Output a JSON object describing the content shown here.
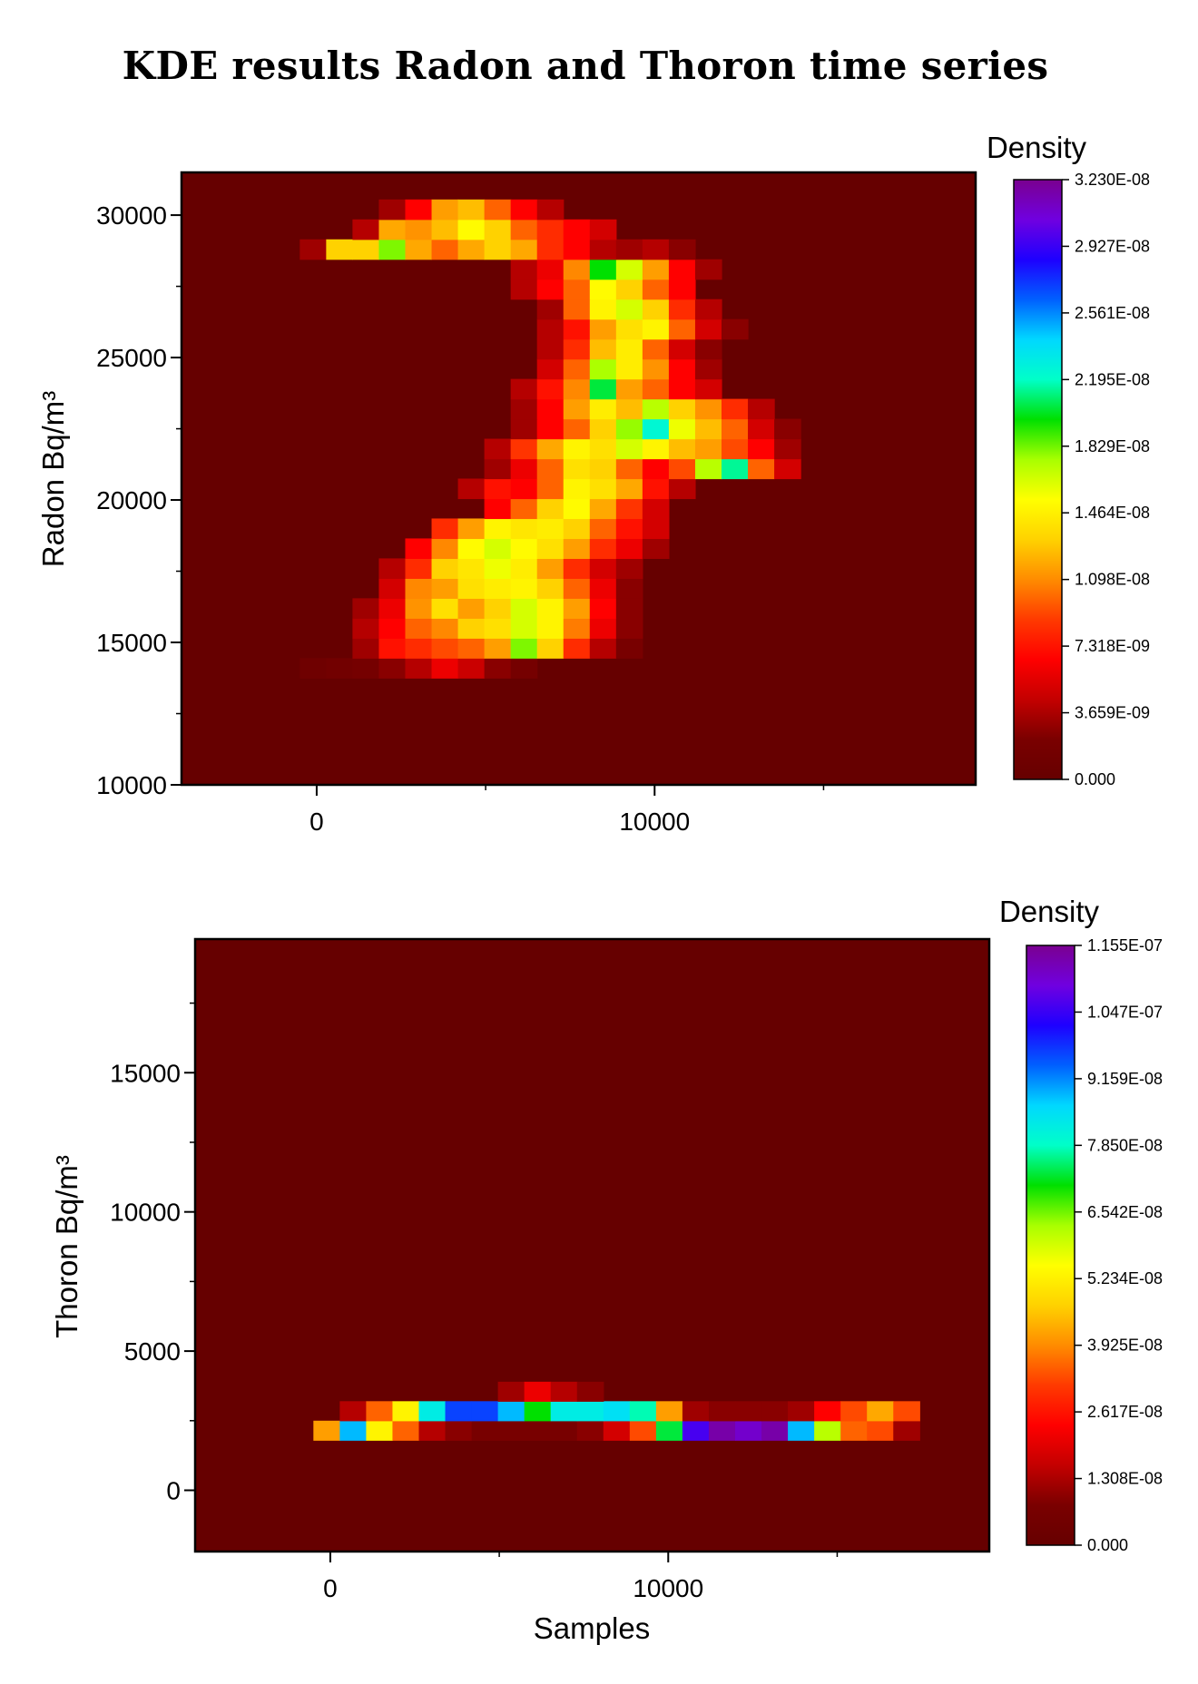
{
  "figure_title": "KDE results Radon and Thoron time series",
  "colormap_stops": [
    "#660000",
    "#7a0000",
    "#c40000",
    "#ff0000",
    "#ff3a00",
    "#ff8c00",
    "#ffd200",
    "#ffff00",
    "#a8ff00",
    "#00e000",
    "#00ffc8",
    "#00d8ff",
    "#0060ff",
    "#1e00ff",
    "#7000e0",
    "#7a0090"
  ],
  "chart_data": [
    {
      "type": "heatmap",
      "title": "",
      "xlabel": "",
      "ylabel": "Radon Bq/m³",
      "x_ticks": [
        "0",
        "10000"
      ],
      "y_ticks": [
        "10000",
        "15000",
        "20000",
        "25000",
        "30000"
      ],
      "xlim": [
        -4000,
        19500
      ],
      "ylim": [
        10000,
        31500
      ],
      "colorbar": {
        "title": "Density",
        "labels": [
          "3.230E-08",
          "2.927E-08",
          "2.561E-08",
          "2.195E-08",
          "1.829E-08",
          "1.464E-08",
          "1.098E-08",
          "7.318E-09",
          "3.659E-09",
          "0.000"
        ],
        "range": [
          0,
          3.23e-08
        ]
      },
      "grid": {
        "x_start": -500,
        "x_step": 780,
        "y_start": 13750,
        "y_step": 700
      },
      "cells": [
        [
          0,
          0,
          0.03
        ],
        [
          0,
          1,
          0.04
        ],
        [
          0,
          2,
          0.05
        ],
        [
          0,
          3,
          0.08
        ],
        [
          0,
          4,
          0.12
        ],
        [
          0,
          5,
          0.18
        ],
        [
          0,
          6,
          0.14
        ],
        [
          0,
          7,
          0.08
        ],
        [
          0,
          8,
          0.05
        ],
        [
          1,
          2,
          0.1
        ],
        [
          1,
          3,
          0.22
        ],
        [
          1,
          4,
          0.25
        ],
        [
          1,
          5,
          0.28
        ],
        [
          1,
          6,
          0.3
        ],
        [
          1,
          7,
          0.35
        ],
        [
          1,
          8,
          0.55
        ],
        [
          1,
          9,
          0.4
        ],
        [
          1,
          10,
          0.25
        ],
        [
          1,
          11,
          0.12
        ],
        [
          1,
          12,
          0.06
        ],
        [
          2,
          2,
          0.12
        ],
        [
          2,
          3,
          0.2
        ],
        [
          2,
          4,
          0.3
        ],
        [
          2,
          5,
          0.33
        ],
        [
          2,
          6,
          0.4
        ],
        [
          2,
          7,
          0.42
        ],
        [
          2,
          8,
          0.5
        ],
        [
          2,
          9,
          0.45
        ],
        [
          2,
          10,
          0.32
        ],
        [
          2,
          11,
          0.18
        ],
        [
          2,
          12,
          0.08
        ],
        [
          3,
          2,
          0.1
        ],
        [
          3,
          3,
          0.18
        ],
        [
          3,
          4,
          0.34
        ],
        [
          3,
          5,
          0.42
        ],
        [
          3,
          6,
          0.35
        ],
        [
          3,
          7,
          0.4
        ],
        [
          3,
          8,
          0.5
        ],
        [
          3,
          9,
          0.45
        ],
        [
          3,
          10,
          0.35
        ],
        [
          3,
          11,
          0.2
        ],
        [
          3,
          12,
          0.08
        ],
        [
          4,
          3,
          0.15
        ],
        [
          4,
          4,
          0.33
        ],
        [
          4,
          5,
          0.35
        ],
        [
          4,
          6,
          0.42
        ],
        [
          4,
          7,
          0.44
        ],
        [
          4,
          8,
          0.45
        ],
        [
          4,
          9,
          0.4
        ],
        [
          4,
          10,
          0.3
        ],
        [
          4,
          11,
          0.18
        ],
        [
          4,
          12,
          0.08
        ],
        [
          5,
          3,
          0.12
        ],
        [
          5,
          4,
          0.25
        ],
        [
          5,
          5,
          0.4
        ],
        [
          5,
          6,
          0.43
        ],
        [
          5,
          7,
          0.48
        ],
        [
          5,
          8,
          0.44
        ],
        [
          5,
          9,
          0.35
        ],
        [
          5,
          10,
          0.25
        ],
        [
          5,
          11,
          0.15
        ],
        [
          5,
          12,
          0.1
        ],
        [
          6,
          4,
          0.2
        ],
        [
          6,
          5,
          0.33
        ],
        [
          6,
          6,
          0.46
        ],
        [
          6,
          7,
          0.5
        ],
        [
          6,
          8,
          0.46
        ],
        [
          6,
          9,
          0.42
        ],
        [
          6,
          10,
          0.35
        ],
        [
          6,
          11,
          0.25
        ],
        [
          6,
          12,
          0.18
        ],
        [
          6,
          13,
          0.1
        ],
        [
          7,
          5,
          0.25
        ],
        [
          7,
          6,
          0.35
        ],
        [
          7,
          7,
          0.45
        ],
        [
          7,
          8,
          0.43
        ],
        [
          7,
          9,
          0.44
        ],
        [
          7,
          10,
          0.4
        ],
        [
          7,
          11,
          0.3
        ],
        [
          7,
          12,
          0.22
        ],
        [
          7,
          13,
          0.15
        ],
        [
          8,
          7,
          0.2
        ],
        [
          8,
          8,
          0.3
        ],
        [
          8,
          9,
          0.4
        ],
        [
          8,
          10,
          0.46
        ],
        [
          8,
          11,
          0.36
        ],
        [
          8,
          12,
          0.26
        ],
        [
          8,
          13,
          0.15
        ],
        [
          9,
          6,
          0.12
        ],
        [
          9,
          7,
          0.22
        ],
        [
          9,
          8,
          0.2
        ],
        [
          9,
          9,
          0.3
        ],
        [
          9,
          10,
          0.45
        ],
        [
          9,
          11,
          0.42
        ],
        [
          9,
          12,
          0.36
        ],
        [
          9,
          13,
          0.22
        ],
        [
          9,
          14,
          0.12
        ],
        [
          10,
          7,
          0.1
        ],
        [
          10,
          8,
          0.18
        ],
        [
          10,
          9,
          0.3
        ],
        [
          10,
          10,
          0.42
        ],
        [
          10,
          11,
          0.4
        ],
        [
          10,
          12,
          0.3
        ],
        [
          10,
          13,
          0.2
        ],
        [
          10,
          14,
          0.28
        ],
        [
          10,
          15,
          0.52
        ],
        [
          10,
          16,
          0.65
        ],
        [
          10,
          17,
          0.3
        ],
        [
          10,
          18,
          0.15
        ],
        [
          11,
          7,
          0.12
        ],
        [
          11,
          8,
          0.26
        ],
        [
          11,
          9,
          0.36
        ],
        [
          11,
          10,
          0.45
        ],
        [
          11,
          11,
          0.42
        ],
        [
          11,
          12,
          0.5
        ],
        [
          11,
          13,
          0.45
        ],
        [
          11,
          14,
          0.38
        ],
        [
          11,
          15,
          0.35
        ],
        [
          11,
          16,
          0.28
        ],
        [
          11,
          17,
          0.2
        ],
        [
          11,
          18,
          0.1
        ],
        [
          12,
          8,
          0.1
        ],
        [
          12,
          9,
          0.2
        ],
        [
          12,
          10,
          0.3
        ],
        [
          12,
          11,
          0.4
        ],
        [
          12,
          12,
          0.54
        ],
        [
          12,
          13,
          0.68
        ],
        [
          12,
          14,
          0.48
        ],
        [
          12,
          15,
          0.38
        ],
        [
          12,
          16,
          0.3
        ],
        [
          12,
          17,
          0.15
        ],
        [
          12,
          18,
          0.08
        ],
        [
          13,
          8,
          0.1
        ],
        [
          13,
          9,
          0.2
        ],
        [
          13,
          10,
          0.35
        ],
        [
          13,
          11,
          0.44
        ],
        [
          13,
          12,
          0.38
        ],
        [
          13,
          13,
          0.52
        ],
        [
          13,
          14,
          0.4
        ],
        [
          13,
          15,
          0.34
        ],
        [
          13,
          16,
          0.25
        ],
        [
          13,
          17,
          0.12
        ],
        [
          14,
          8,
          0.12
        ],
        [
          14,
          9,
          0.22
        ],
        [
          14,
          10,
          0.33
        ],
        [
          14,
          11,
          0.62
        ],
        [
          14,
          12,
          0.35
        ],
        [
          14,
          13,
          0.3
        ],
        [
          14,
          14,
          0.2
        ],
        [
          14,
          15,
          0.15
        ],
        [
          15,
          9,
          0.15
        ],
        [
          15,
          10,
          0.3
        ],
        [
          15,
          11,
          0.53
        ],
        [
          15,
          12,
          0.44
        ],
        [
          15,
          13,
          0.34
        ],
        [
          15,
          14,
          0.2
        ],
        [
          15,
          15,
          0.1
        ],
        [
          16,
          9,
          0.12
        ],
        [
          16,
          10,
          0.25
        ],
        [
          16,
          11,
          0.38
        ],
        [
          16,
          12,
          0.44
        ],
        [
          16,
          13,
          0.3
        ],
        [
          16,
          14,
          0.15
        ],
        [
          16,
          15,
          0.08
        ],
        [
          17,
          9,
          0.12
        ],
        [
          17,
          10,
          0.22
        ],
        [
          17,
          11,
          0.35
        ],
        [
          17,
          12,
          0.42
        ],
        [
          17,
          13,
          0.45
        ],
        [
          17,
          14,
          0.3
        ],
        [
          17,
          15,
          0.15
        ],
        [
          17,
          16,
          0.08
        ],
        [
          18,
          9,
          0.1
        ],
        [
          18,
          10,
          0.3
        ],
        [
          18,
          11,
          0.45
        ],
        [
          18,
          12,
          0.5
        ],
        [
          18,
          13,
          0.4
        ],
        [
          18,
          14,
          0.25
        ],
        [
          18,
          15,
          0.12
        ],
        [
          19,
          8,
          0.12
        ],
        [
          19,
          9,
          0.2
        ],
        [
          19,
          10,
          0.3
        ],
        [
          19,
          11,
          0.46
        ],
        [
          19,
          12,
          0.4
        ],
        [
          19,
          13,
          0.3
        ],
        [
          19,
          14,
          0.2
        ],
        [
          20,
          8,
          0.12
        ],
        [
          20,
          9,
          0.18
        ],
        [
          20,
          10,
          0.33
        ],
        [
          20,
          11,
          0.6
        ],
        [
          20,
          12,
          0.5
        ],
        [
          20,
          13,
          0.35
        ],
        [
          20,
          14,
          0.2
        ],
        [
          20,
          15,
          0.1
        ],
        [
          21,
          0,
          0.1
        ],
        [
          21,
          1,
          0.4
        ],
        [
          21,
          2,
          0.4
        ],
        [
          21,
          3,
          0.55
        ],
        [
          21,
          4,
          0.36
        ],
        [
          21,
          5,
          0.3
        ],
        [
          21,
          6,
          0.36
        ],
        [
          21,
          7,
          0.4
        ],
        [
          21,
          8,
          0.36
        ],
        [
          21,
          9,
          0.25
        ],
        [
          21,
          10,
          0.2
        ],
        [
          21,
          11,
          0.12
        ],
        [
          21,
          12,
          0.1
        ],
        [
          21,
          13,
          0.12
        ],
        [
          21,
          14,
          0.08
        ],
        [
          22,
          2,
          0.12
        ],
        [
          22,
          3,
          0.36
        ],
        [
          22,
          4,
          0.34
        ],
        [
          22,
          5,
          0.38
        ],
        [
          22,
          6,
          0.46
        ],
        [
          22,
          7,
          0.4
        ],
        [
          22,
          8,
          0.3
        ],
        [
          22,
          9,
          0.25
        ],
        [
          22,
          10,
          0.2
        ],
        [
          22,
          11,
          0.15
        ],
        [
          23,
          3,
          0.1
        ],
        [
          23,
          4,
          0.2
        ],
        [
          23,
          5,
          0.35
        ],
        [
          23,
          6,
          0.38
        ],
        [
          23,
          7,
          0.3
        ],
        [
          23,
          8,
          0.2
        ],
        [
          23,
          9,
          0.12
        ]
      ]
    },
    {
      "type": "heatmap",
      "title": "",
      "xlabel": "Samples",
      "ylabel": "Thoron Bq/m³",
      "x_ticks": [
        "0",
        "10000"
      ],
      "y_ticks": [
        "0",
        "5000",
        "10000",
        "15000"
      ],
      "xlim": [
        -4000,
        19500
      ],
      "ylim": [
        -2200,
        19800
      ],
      "colorbar": {
        "title": "Density",
        "labels": [
          "1.155E-07",
          "1.047E-07",
          "9.159E-08",
          "7.850E-08",
          "6.542E-08",
          "5.234E-08",
          "3.925E-08",
          "2.617E-08",
          "1.308E-08",
          "0.000"
        ],
        "range": [
          0,
          1.155e-07
        ]
      },
      "grid": {
        "x_start": -500,
        "x_step": 780,
        "y_start": 1800,
        "y_step": 700
      },
      "cells": [
        [
          0,
          0,
          0.35
        ],
        [
          0,
          1,
          0.75
        ],
        [
          0,
          2,
          0.45
        ],
        [
          0,
          3,
          0.3
        ],
        [
          0,
          4,
          0.12
        ],
        [
          0,
          5,
          0.08
        ],
        [
          0,
          6,
          0.06
        ],
        [
          0,
          7,
          0.06
        ],
        [
          0,
          8,
          0.06
        ],
        [
          0,
          9,
          0.06
        ],
        [
          0,
          10,
          0.08
        ],
        [
          0,
          11,
          0.15
        ],
        [
          0,
          12,
          0.28
        ],
        [
          0,
          13,
          0.62
        ],
        [
          0,
          14,
          0.9
        ],
        [
          0,
          15,
          0.98
        ],
        [
          0,
          16,
          0.95
        ],
        [
          0,
          17,
          0.98
        ],
        [
          0,
          18,
          0.75
        ],
        [
          0,
          19,
          0.52
        ],
        [
          0,
          20,
          0.3
        ],
        [
          0,
          21,
          0.28
        ],
        [
          0,
          22,
          0.1
        ],
        [
          1,
          1,
          0.12
        ],
        [
          1,
          2,
          0.3
        ],
        [
          1,
          3,
          0.45
        ],
        [
          1,
          4,
          0.7
        ],
        [
          1,
          5,
          0.82
        ],
        [
          1,
          6,
          0.82
        ],
        [
          1,
          7,
          0.75
        ],
        [
          1,
          8,
          0.6
        ],
        [
          1,
          9,
          0.7
        ],
        [
          1,
          10,
          0.7
        ],
        [
          1,
          11,
          0.72
        ],
        [
          1,
          12,
          0.66
        ],
        [
          1,
          13,
          0.35
        ],
        [
          1,
          14,
          0.1
        ],
        [
          1,
          15,
          0.08
        ],
        [
          1,
          16,
          0.08
        ],
        [
          1,
          17,
          0.08
        ],
        [
          1,
          18,
          0.1
        ],
        [
          1,
          19,
          0.2
        ],
        [
          1,
          20,
          0.28
        ],
        [
          1,
          21,
          0.36
        ],
        [
          1,
          22,
          0.28
        ],
        [
          2,
          7,
          0.1
        ],
        [
          2,
          8,
          0.18
        ],
        [
          2,
          9,
          0.12
        ],
        [
          2,
          10,
          0.08
        ]
      ]
    }
  ]
}
